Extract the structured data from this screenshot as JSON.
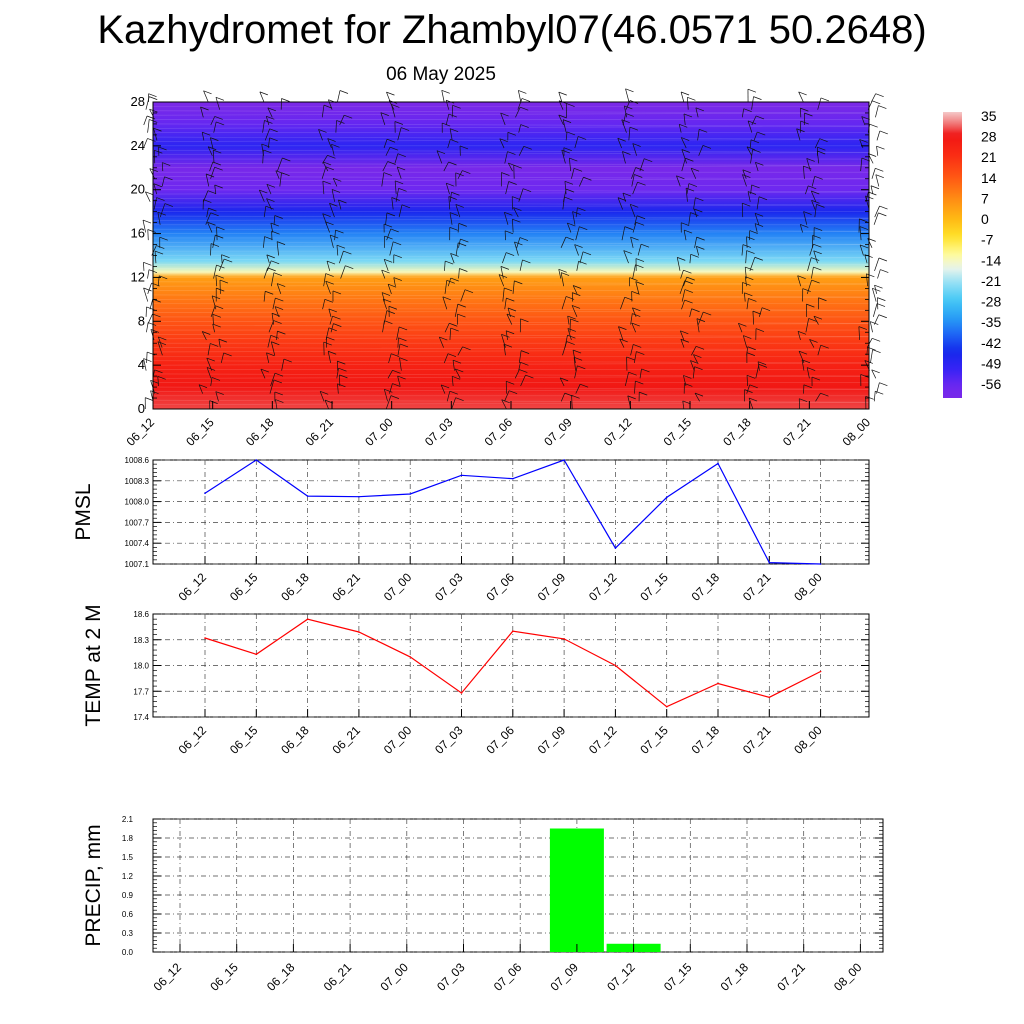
{
  "page": {
    "title": "Kazhydromet for Zhambyl07(46.0571 50.2648)",
    "subtitle": "06 May 2025"
  },
  "chart_data": [
    {
      "type": "heatmap",
      "title": "",
      "xlabel": "",
      "ylabel": "",
      "x": [
        "06_12",
        "06_15",
        "06_18",
        "06_21",
        "07_00",
        "07_03",
        "07_06",
        "07_09",
        "07_12",
        "07_15",
        "07_18",
        "07_21",
        "08_00"
      ],
      "ylim": [
        0,
        28
      ],
      "yticks": [
        0,
        4,
        8,
        12,
        16,
        20,
        24,
        28
      ],
      "colorbar": {
        "labels": [
          "35",
          "28",
          "21",
          "14",
          "7",
          "0",
          "-7",
          "-14",
          "-21",
          "-28",
          "-35",
          "-42",
          "-49",
          "-56"
        ],
        "values": [
          35,
          28,
          21,
          14,
          7,
          0,
          -7,
          -14,
          -21,
          -28,
          -35,
          -42,
          -49,
          -56
        ],
        "range": [
          -60,
          39
        ]
      },
      "profile_levels": [
        0,
        2,
        4,
        6,
        8,
        10,
        12,
        12.5,
        13.5,
        16,
        18,
        20,
        22,
        24,
        26,
        28
      ],
      "profile_values": [
        33,
        30,
        27,
        22,
        17,
        12,
        6,
        -12,
        -22,
        -35,
        -45,
        -56,
        -60,
        -48,
        -55,
        -62
      ],
      "wind_barbs": true
    },
    {
      "type": "line",
      "ylabel": "PMSL",
      "xlabel": "",
      "ylim": [
        1007.1,
        1008.6
      ],
      "yticks": [
        "1007.1",
        "1007.4",
        "1007.7",
        "1008.0",
        "1008.3",
        "1008.6"
      ],
      "x": [
        "06_12",
        "06_15",
        "06_18",
        "06_21",
        "07_00",
        "07_03",
        "07_06",
        "07_09",
        "07_12",
        "07_15",
        "07_18",
        "07_21",
        "08_00"
      ],
      "series": [
        {
          "color": "#0000ff",
          "values": [
            1008.12,
            1008.6,
            1008.08,
            1008.07,
            1008.11,
            1008.38,
            1008.33,
            1008.6,
            1007.33,
            1008.06,
            1008.55,
            1007.12,
            1007.1
          ]
        }
      ],
      "grid": true
    },
    {
      "type": "line",
      "ylabel": "TEMP at 2 M",
      "xlabel": "",
      "ylim": [
        17.4,
        18.6
      ],
      "yticks": [
        "17.4",
        "17.7",
        "18.0",
        "18.3",
        "18.6"
      ],
      "x": [
        "06_12",
        "06_15",
        "06_18",
        "06_21",
        "07_00",
        "07_03",
        "07_06",
        "07_09",
        "07_12",
        "07_15",
        "07_18",
        "07_21",
        "08_00"
      ],
      "series": [
        {
          "color": "#ff0000",
          "values": [
            18.32,
            18.13,
            18.54,
            18.39,
            18.1,
            17.68,
            18.4,
            18.31,
            18.0,
            17.52,
            17.79,
            17.63,
            17.93
          ]
        }
      ],
      "grid": true
    },
    {
      "type": "bar",
      "ylabel": "PRECIP, mm",
      "xlabel": "",
      "ylim": [
        0,
        2.1
      ],
      "yticks": [
        "0.0",
        "0.3",
        "0.6",
        "0.9",
        "1.2",
        "1.5",
        "1.8",
        "2.1"
      ],
      "categories": [
        "06_12",
        "06_15",
        "06_18",
        "06_21",
        "07_00",
        "07_03",
        "07_06",
        "07_09",
        "07_12",
        "07_15",
        "07_18",
        "07_21",
        "08_00"
      ],
      "values": [
        0,
        0,
        0,
        0,
        0,
        0,
        0,
        1.95,
        0.13,
        0,
        0,
        0,
        0
      ],
      "bar_color": "#00ff00",
      "grid": true
    }
  ]
}
